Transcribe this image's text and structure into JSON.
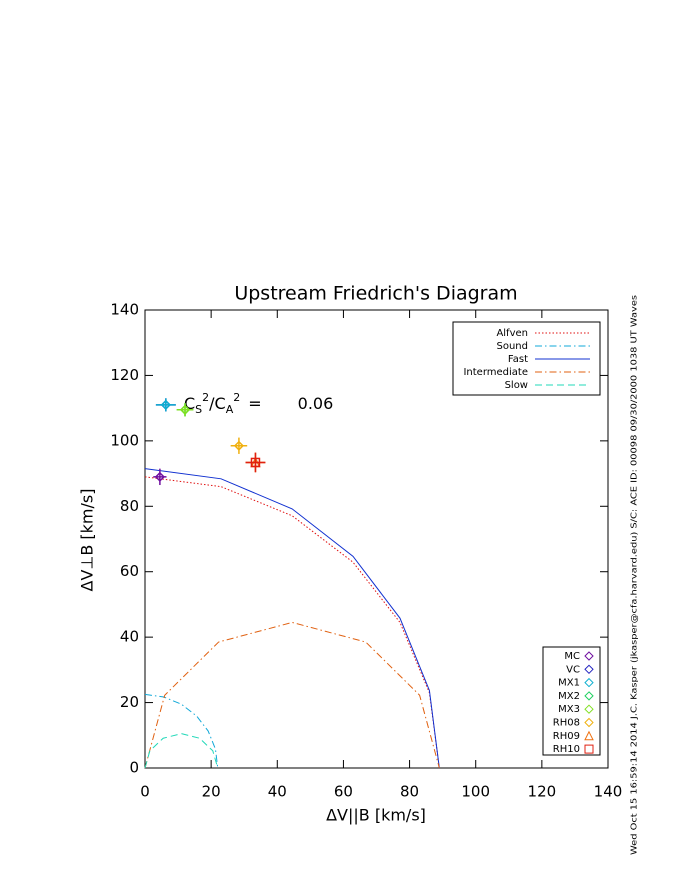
{
  "chart_data": {
    "type": "line",
    "title": "Upstream Friedrich's Diagram",
    "x_label": "ΔV||B [km/s]",
    "y_label": "ΔV⊥B [km/s]",
    "xlim": [
      0,
      140
    ],
    "ylim": [
      0,
      140
    ],
    "xticks": [
      0,
      20,
      40,
      60,
      80,
      100,
      120,
      140
    ],
    "yticks": [
      0,
      20,
      40,
      60,
      80,
      100,
      120,
      140
    ],
    "ratio": {
      "parts": [
        "C",
        "S",
        "2",
        "/C",
        "A",
        "2"
      ],
      "equals": "=",
      "value": 0.06
    },
    "footer_note": "Wed Oct 15 16:59:14 2014   J.C. Kasper (jkasper@cfa.harvard.edu)   S/C: ACE ID: 00098 09/30/2000   1038 UT Waves",
    "series": [
      {
        "name": "Alfven",
        "color": "#e01010",
        "style": "dotted",
        "x": [
          0,
          23.0,
          44.5,
          62.9,
          77.1,
          86.0,
          89
        ],
        "values": [
          89,
          86.0,
          77.1,
          62.9,
          44.5,
          23.0,
          0
        ]
      },
      {
        "name": "Sound",
        "color": "#10a8d8",
        "style": "dash-dot",
        "x": [
          0,
          5.7,
          11,
          15.6,
          19.1,
          21.3,
          22
        ],
        "values": [
          22.5,
          21.7,
          19.5,
          15.9,
          11.3,
          5.8,
          0
        ]
      },
      {
        "name": "Fast",
        "color": "#1030d0",
        "style": "solid",
        "x": [
          0,
          23.0,
          44.5,
          62.9,
          77.1,
          86.0,
          89
        ],
        "values": [
          91.5,
          88.4,
          79.2,
          64.7,
          45.8,
          23.7,
          0
        ]
      },
      {
        "name": "Intermediate",
        "color": "#e06010",
        "style": "dash-dot",
        "x": [
          0,
          5.96,
          22.25,
          44.5,
          66.75,
          83.04,
          89
        ],
        "values": [
          0,
          22.25,
          38.5,
          44.5,
          38.5,
          22.25,
          0
        ]
      },
      {
        "name": "Slow",
        "color": "#20d8b8",
        "style": "dashed",
        "x": [
          0,
          1.47,
          5.5,
          11,
          16.5,
          20.5,
          22
        ],
        "values": [
          0,
          5.25,
          9.1,
          10.5,
          9.1,
          5.25,
          0
        ]
      }
    ],
    "points": [
      {
        "name": "MC",
        "color": "#7010a0",
        "marker": "diamond",
        "x": [
          4.5
        ],
        "values": [
          89
        ],
        "xerr": [
          2
        ],
        "yerr": [
          2.5
        ]
      },
      {
        "name": "VC",
        "color": "#2020c0",
        "marker": "diamond",
        "x": [
          6.3
        ],
        "values": [
          111
        ],
        "xerr": [
          3
        ],
        "yerr": [
          2
        ]
      },
      {
        "name": "MX1",
        "color": "#10b0d0",
        "marker": "diamond",
        "x": [
          6.3
        ],
        "values": [
          111
        ],
        "xerr": [
          3
        ],
        "yerr": [
          2
        ]
      },
      {
        "name": "MX2",
        "color": "#20d060",
        "marker": "diamond",
        "x": [
          12.1
        ],
        "values": [
          109.5
        ],
        "xerr": [
          2.5
        ],
        "yerr": [
          2
        ]
      },
      {
        "name": "MX3",
        "color": "#80e020",
        "marker": "diamond",
        "x": [
          12.1
        ],
        "values": [
          109.5
        ],
        "xerr": [
          2.5
        ],
        "yerr": [
          2
        ]
      },
      {
        "name": "RH08",
        "color": "#f0b010",
        "marker": "diamond",
        "x": [
          28.4
        ],
        "values": [
          98.5
        ],
        "xerr": [
          2.5
        ],
        "yerr": [
          2.5
        ]
      },
      {
        "name": "RH09",
        "color": "#f07010",
        "marker": "triangle",
        "x": [
          33.4
        ],
        "values": [
          93.4
        ],
        "xerr": [
          3
        ],
        "yerr": [
          3
        ]
      },
      {
        "name": "RH10",
        "color": "#e02010",
        "marker": "square",
        "x": [
          33.4
        ],
        "values": [
          93.4
        ],
        "xerr": [
          3
        ],
        "yerr": [
          3
        ]
      }
    ]
  }
}
